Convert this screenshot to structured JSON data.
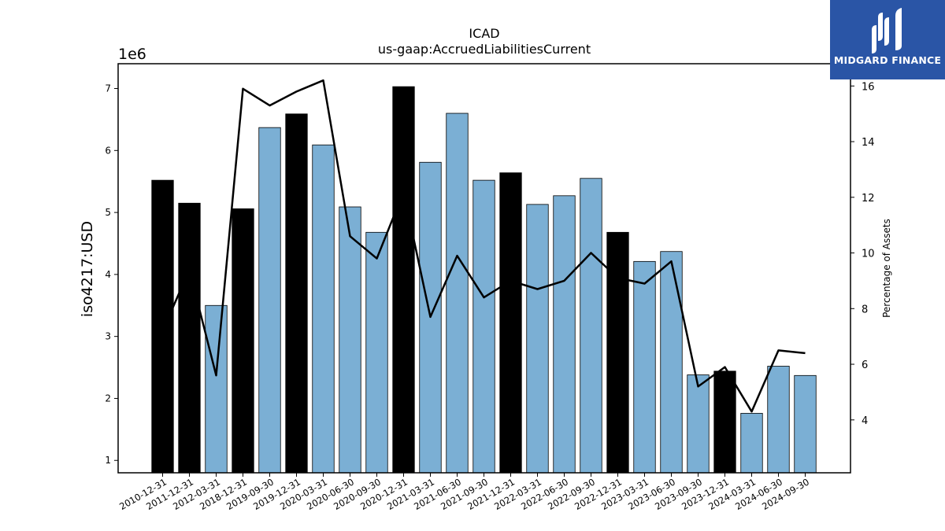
{
  "chart_data": {
    "type": "bar",
    "title": "ICAD",
    "subtitle": "us-gaap:AccruedLiabilitiesCurrent",
    "ylabel": "iso4217:USD",
    "y2label": "Percentage of Assets",
    "y_offset_label": "1e6",
    "ylim": [
      0.8,
      7.4
    ],
    "y2lim": [
      2.1,
      16.8
    ],
    "y_ticks": [
      "1",
      "2",
      "3",
      "4",
      "5",
      "6",
      "7"
    ],
    "y2_ticks": [
      "4",
      "6",
      "8",
      "10",
      "12",
      "14",
      "16"
    ],
    "categories": [
      "2010-12-31",
      "2011-12-31",
      "2012-03-31",
      "2018-12-31",
      "2019-09-30",
      "2019-12-31",
      "2020-03-31",
      "2020-06-30",
      "2020-09-30",
      "2020-12-31",
      "2021-03-31",
      "2021-06-30",
      "2021-09-30",
      "2021-12-31",
      "2022-03-31",
      "2022-06-30",
      "2022-09-30",
      "2022-12-31",
      "2023-03-31",
      "2023-06-30",
      "2023-09-30",
      "2023-12-31",
      "2024-03-31",
      "2024-06-30",
      "2024-09-30"
    ],
    "series": [
      {
        "type": "bar",
        "values": [
          5.52,
          5.15,
          3.5,
          5.06,
          6.37,
          6.59,
          6.09,
          5.09,
          4.68,
          7.03,
          5.81,
          6.6,
          5.52,
          5.64,
          5.13,
          5.27,
          5.55,
          4.68,
          4.21,
          4.37,
          2.38,
          2.44,
          1.76,
          2.52,
          2.37
        ],
        "is_annual": [
          true,
          true,
          false,
          true,
          false,
          true,
          false,
          false,
          false,
          true,
          false,
          false,
          false,
          true,
          false,
          false,
          false,
          true,
          false,
          false,
          false,
          true,
          false,
          false,
          false
        ]
      },
      {
        "type": "line",
        "axis": "right",
        "values": [
          7.2,
          9.4,
          5.6,
          15.9,
          15.3,
          15.8,
          16.2,
          10.6,
          9.8,
          12.2,
          7.7,
          9.9,
          8.4,
          9.0,
          8.7,
          9.0,
          10.0,
          9.1,
          8.9,
          9.7,
          5.2,
          5.9,
          4.3,
          6.5,
          6.4
        ]
      }
    ],
    "colors": {
      "annual_bar": "#000000",
      "quarter_bar": "#7bafd4",
      "bar_edge": "#000000",
      "line": "#000000"
    },
    "grid": false
  },
  "logo": {
    "text": "MIDGARD FINANCE"
  }
}
